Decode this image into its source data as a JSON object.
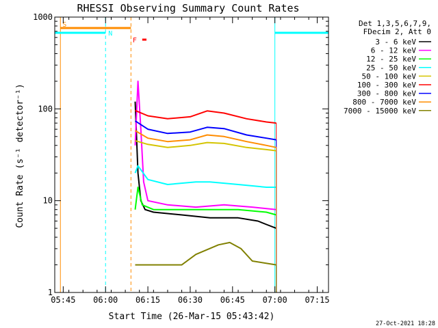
{
  "chart_data": {
    "type": "line",
    "title": "RHESSI Observing Summary Count Rates",
    "ylabel": "Count Rate (s⁻¹ detector⁻¹)",
    "xlabel": "Start Time (26-Mar-15 05:43:42)",
    "y_scale": "log",
    "ylim": [
      1,
      1000
    ],
    "y_ticks": [
      {
        "value": 1,
        "label": "1"
      },
      {
        "value": 10,
        "label": "10"
      },
      {
        "value": 100,
        "label": "100"
      },
      {
        "value": 1000,
        "label": "1000"
      }
    ],
    "x_range_min": [
      0,
      97
    ],
    "x_ticks": [
      {
        "min": 3,
        "label": "05:45"
      },
      {
        "min": 18,
        "label": "06:00"
      },
      {
        "min": 33,
        "label": "06:15"
      },
      {
        "min": 48,
        "label": "06:30"
      },
      {
        "min": 63,
        "label": "06:45"
      },
      {
        "min": 78,
        "label": "07:00"
      },
      {
        "min": 93,
        "label": "07:15"
      }
    ],
    "legend_header": [
      "Det 1,3,5,6,7,9,",
      "FDecim 2, Att 0"
    ],
    "series": [
      {
        "name": "3 - 6 keV",
        "color": "#000000",
        "values": [
          [
            28.5,
            120
          ],
          [
            29.5,
            20
          ],
          [
            30.5,
            10
          ],
          [
            32,
            8
          ],
          [
            35,
            7.5
          ],
          [
            45,
            7
          ],
          [
            55,
            6.5
          ],
          [
            65,
            6.5
          ],
          [
            72,
            6
          ],
          [
            75,
            5.5
          ],
          [
            78.5,
            5
          ]
        ]
      },
      {
        "name": "6 - 12 keV",
        "color": "#ff00ff",
        "values": [
          [
            28.5,
            40
          ],
          [
            29.5,
            200
          ],
          [
            30.5,
            60
          ],
          [
            31.5,
            16
          ],
          [
            33,
            10
          ],
          [
            40,
            9
          ],
          [
            50,
            8.5
          ],
          [
            60,
            9
          ],
          [
            70,
            8.5
          ],
          [
            78.5,
            8
          ]
        ]
      },
      {
        "name": "12 - 25 keV",
        "color": "#00ff00",
        "values": [
          [
            28.5,
            8
          ],
          [
            29.5,
            14
          ],
          [
            31,
            9
          ],
          [
            35,
            8
          ],
          [
            45,
            8
          ],
          [
            55,
            8
          ],
          [
            65,
            8
          ],
          [
            75,
            7.5
          ],
          [
            78.5,
            7
          ]
        ]
      },
      {
        "name": "25 - 50 keV",
        "color": "#00ffff",
        "values": [
          [
            28.5,
            20
          ],
          [
            29.5,
            24
          ],
          [
            33,
            17
          ],
          [
            40,
            15
          ],
          [
            50,
            16
          ],
          [
            55,
            16
          ],
          [
            65,
            15
          ],
          [
            75,
            14
          ],
          [
            78.5,
            14
          ]
        ]
      },
      {
        "name": "50 - 100 keV",
        "color": "#d4c400",
        "values": [
          [
            28.5,
            45
          ],
          [
            33,
            41
          ],
          [
            40,
            38
          ],
          [
            48,
            40
          ],
          [
            54,
            43
          ],
          [
            60,
            42
          ],
          [
            68,
            38
          ],
          [
            75,
            36
          ],
          [
            78.5,
            35
          ]
        ]
      },
      {
        "name": "100 - 300 keV",
        "color": "#ff0000",
        "values": [
          [
            28.5,
            96
          ],
          [
            33,
            84
          ],
          [
            40,
            78
          ],
          [
            48,
            82
          ],
          [
            54,
            95
          ],
          [
            60,
            90
          ],
          [
            68,
            78
          ],
          [
            75,
            72
          ],
          [
            78.5,
            70
          ]
        ]
      },
      {
        "name": "300 - 800 keV",
        "color": "#0000ff",
        "values": [
          [
            28.5,
            74
          ],
          [
            33,
            60
          ],
          [
            40,
            54
          ],
          [
            48,
            56
          ],
          [
            54,
            63
          ],
          [
            60,
            61
          ],
          [
            68,
            52
          ],
          [
            75,
            48
          ],
          [
            78.5,
            46
          ]
        ]
      },
      {
        "name": "800 - 7000 keV",
        "color": "#ff8c00",
        "values": [
          [
            28.5,
            58
          ],
          [
            33,
            48
          ],
          [
            40,
            44
          ],
          [
            48,
            46
          ],
          [
            54,
            52
          ],
          [
            60,
            50
          ],
          [
            68,
            44
          ],
          [
            75,
            40
          ],
          [
            78.5,
            38
          ]
        ]
      },
      {
        "name": "7000 - 15000 keV",
        "color": "#808000",
        "values": [
          [
            28.5,
            2
          ],
          [
            35,
            2
          ],
          [
            45,
            2
          ],
          [
            50,
            2.6
          ],
          [
            58,
            3.3
          ],
          [
            62,
            3.5
          ],
          [
            66,
            3
          ],
          [
            70,
            2.2
          ],
          [
            78.5,
            2
          ]
        ]
      }
    ],
    "flags": [
      {
        "label": "S",
        "color": "#ff8c00",
        "start_min": 2,
        "end_min": 27
      },
      {
        "label": "N",
        "color": "#00ffff",
        "start_min": 0,
        "end_min": 18
      },
      {
        "label": "N",
        "color": "#00ffff",
        "start_min": 78,
        "end_min": 97
      },
      {
        "label": "F",
        "color": "#ff0000",
        "start_min": 31,
        "end_min": 32.5
      }
    ]
  },
  "footer_timestamp": "27-Oct-2021 18:28"
}
